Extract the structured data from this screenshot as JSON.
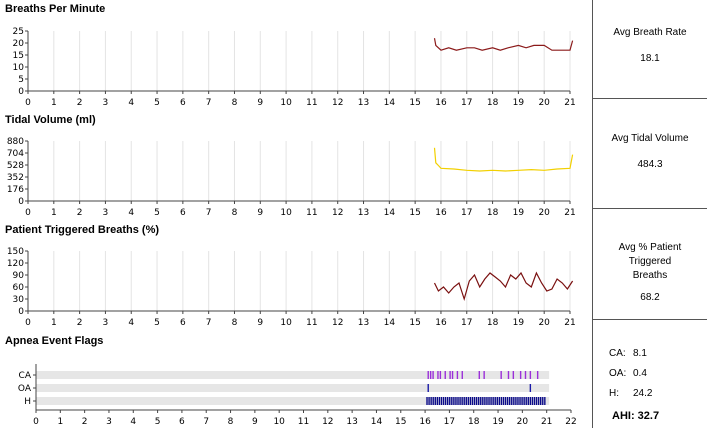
{
  "panels": [
    {
      "id": "breaths",
      "title": "Breaths Per Minute",
      "y_ticks": [
        25,
        20,
        15,
        10,
        5,
        0
      ],
      "x_ticks": [
        "0",
        "1",
        "2",
        "3",
        "4",
        "5",
        "6",
        "7",
        "8",
        "9",
        "10",
        "11",
        "12",
        "13",
        "14",
        "15",
        "16",
        "17",
        "18",
        "19",
        "20",
        "21"
      ],
      "color": "#8b1a1a",
      "stat_label": "Avg Breath Rate",
      "stat_value": "18.1"
    },
    {
      "id": "tidal",
      "title": "Tidal Volume (ml)",
      "y_ticks": [
        880,
        704,
        528,
        352,
        176,
        0
      ],
      "x_ticks": [
        "0",
        "1",
        "2",
        "3",
        "4",
        "5",
        "6",
        "7",
        "8",
        "9",
        "10",
        "11",
        "12",
        "13",
        "14",
        "15",
        "16",
        "17",
        "18",
        "19",
        "20",
        "21"
      ],
      "color": "#f2d000",
      "stat_label": "Avg Tidal Volume",
      "stat_value": "484.3"
    },
    {
      "id": "triggered",
      "title": "Patient Triggered Breaths (%)",
      "y_ticks": [
        150,
        120,
        90,
        60,
        30,
        0
      ],
      "x_ticks": [
        "0",
        "1",
        "2",
        "3",
        "4",
        "5",
        "6",
        "7",
        "8",
        "9",
        "10",
        "11",
        "12",
        "13",
        "14",
        "15",
        "16",
        "17",
        "18",
        "19",
        "20",
        "21"
      ],
      "color": "#7a1010",
      "stat_label": "Avg % Patient Triggered Breaths",
      "stat_value": "68.2"
    }
  ],
  "apnea": {
    "title": "Apnea Event Flags",
    "rows": [
      "CA",
      "OA",
      "H"
    ],
    "x_ticks": [
      "0",
      "1",
      "2",
      "3",
      "4",
      "5",
      "6",
      "7",
      "8",
      "9",
      "10",
      "11",
      "12",
      "13",
      "14",
      "15",
      "16",
      "17",
      "18",
      "19",
      "20",
      "21",
      "22"
    ],
    "colors": {
      "CA": "#9b30d9",
      "OA": "#1a1aa8",
      "H": "#0b0b8a"
    },
    "stats": [
      {
        "label": "CA:",
        "value": "8.1"
      },
      {
        "label": "OA:",
        "value": "0.4"
      },
      {
        "label": "H:",
        "value": "24.2"
      }
    ],
    "ahi": "AHI: 32.7"
  },
  "chart_data": [
    {
      "type": "line",
      "title": "Breaths Per Minute",
      "xlim": [
        0,
        21
      ],
      "ylim": [
        0,
        25
      ],
      "series": [
        {
          "x": [
            15.75,
            15.8,
            15.9,
            16.0,
            16.3,
            16.6,
            17.0,
            17.3,
            17.6,
            18.0,
            18.3,
            18.6,
            19.0,
            19.3,
            19.6,
            20.0,
            20.3,
            20.6,
            21.0,
            21.1
          ],
          "y": [
            22,
            19,
            18,
            17,
            18,
            17,
            18,
            18,
            17,
            18,
            17,
            18,
            19,
            18,
            19,
            19,
            17,
            17,
            17,
            21
          ]
        }
      ]
    },
    {
      "type": "line",
      "title": "Tidal Volume (ml)",
      "xlim": [
        0,
        21
      ],
      "ylim": [
        0,
        880
      ],
      "series": [
        {
          "x": [
            15.75,
            15.8,
            15.9,
            16.0,
            16.5,
            17.0,
            17.5,
            18.0,
            18.5,
            19.0,
            19.5,
            20.0,
            20.5,
            21.0,
            21.1
          ],
          "y": [
            780,
            560,
            520,
            480,
            470,
            450,
            440,
            450,
            440,
            450,
            460,
            450,
            470,
            480,
            680
          ]
        }
      ]
    },
    {
      "type": "line",
      "title": "Patient Triggered Breaths (%)",
      "xlim": [
        0,
        21
      ],
      "ylim": [
        0,
        150
      ],
      "series": [
        {
          "x": [
            15.75,
            15.9,
            16.1,
            16.3,
            16.5,
            16.7,
            16.9,
            17.1,
            17.3,
            17.5,
            17.7,
            17.9,
            18.1,
            18.3,
            18.5,
            18.7,
            18.9,
            19.1,
            19.3,
            19.5,
            19.7,
            19.9,
            20.1,
            20.3,
            20.5,
            20.7,
            20.9,
            21.1
          ],
          "y": [
            70,
            50,
            60,
            45,
            60,
            70,
            30,
            75,
            90,
            60,
            80,
            95,
            85,
            75,
            60,
            90,
            80,
            95,
            70,
            60,
            95,
            70,
            50,
            55,
            80,
            70,
            55,
            75
          ]
        }
      ]
    }
  ]
}
